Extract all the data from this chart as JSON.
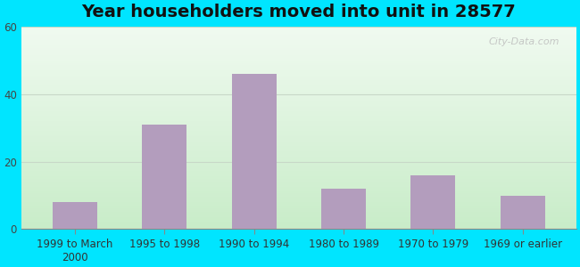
{
  "title": "Year householders moved into unit in 28577",
  "categories": [
    "1999 to March\n2000",
    "1995 to 1998",
    "1990 to 1994",
    "1980 to 1989",
    "1970 to 1979",
    "1969 or earlier"
  ],
  "values": [
    8,
    31,
    46,
    12,
    16,
    10
  ],
  "bar_color": "#b39dbd",
  "ylim": [
    0,
    60
  ],
  "yticks": [
    0,
    20,
    40,
    60
  ],
  "background_outer": "#00e5ff",
  "bg_top": "#f0faf0",
  "bg_bottom": "#c8ecc8",
  "grid_color": "#c8d8c8",
  "title_fontsize": 14,
  "tick_fontsize": 8.5,
  "watermark": "City-Data.com"
}
